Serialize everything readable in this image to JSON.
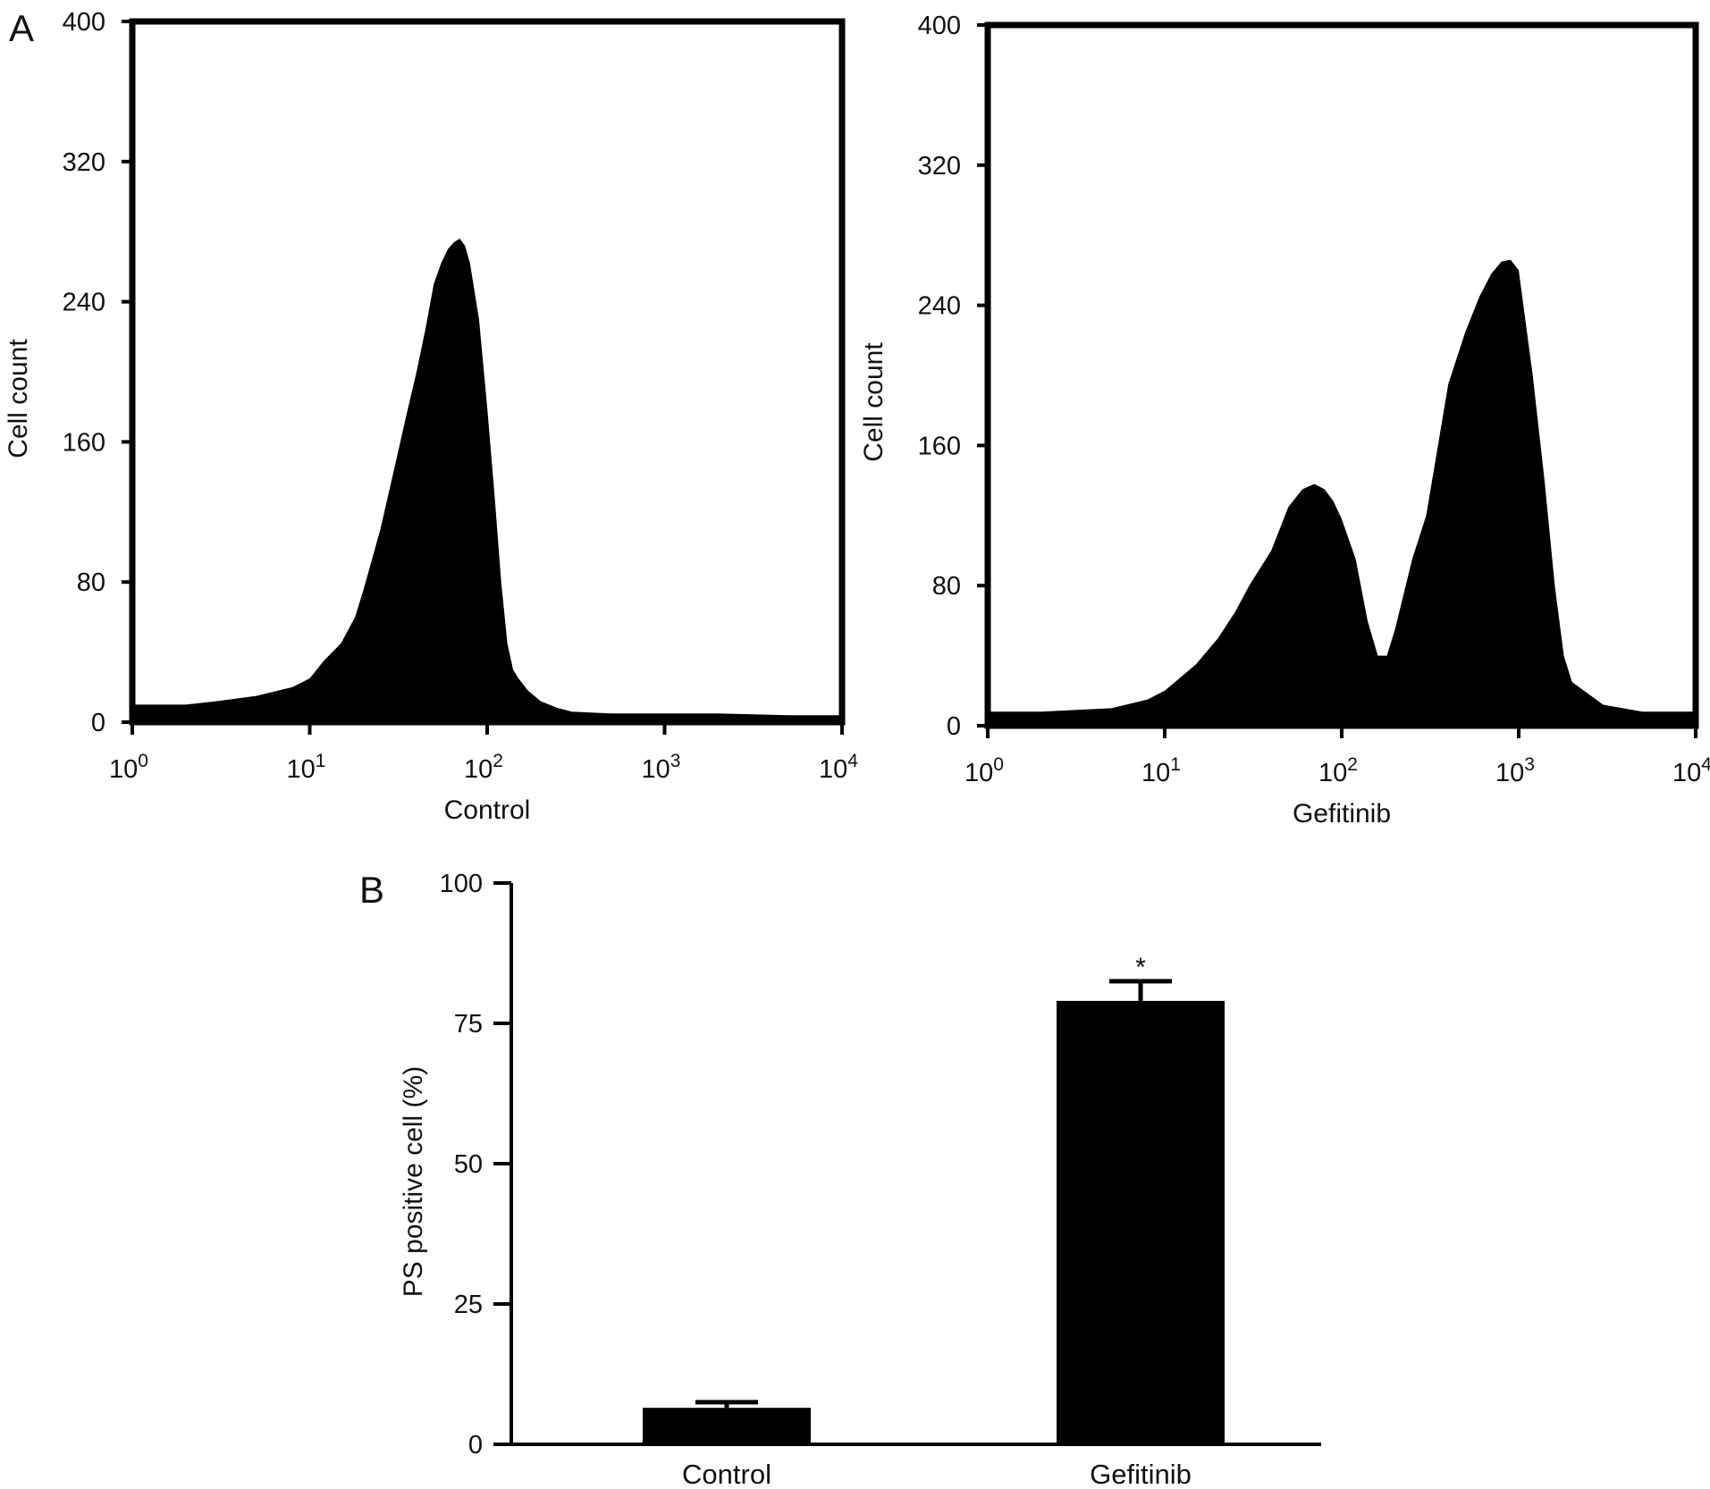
{
  "panels": {
    "a_label": "A",
    "b_label": "B"
  },
  "chart_data": [
    {
      "type": "area",
      "panel": "A",
      "xscale": "log",
      "xlim": [
        1,
        10000
      ],
      "ylim": [
        0,
        400
      ],
      "xlabel": "Control",
      "ylabel": "Cell count",
      "yticks": [
        "0",
        "80",
        "160",
        "240",
        "320",
        "400"
      ],
      "xticks": [
        {
          "base": "10",
          "exp": "0"
        },
        {
          "base": "10",
          "exp": "1"
        },
        {
          "base": "10",
          "exp": "2"
        },
        {
          "base": "10",
          "exp": "3"
        },
        {
          "base": "10",
          "exp": "4"
        }
      ],
      "fill_color": "#000000",
      "x": [
        1,
        1.5,
        2,
        3,
        5,
        8,
        10,
        12,
        15,
        18,
        20,
        25,
        30,
        35,
        40,
        45,
        50,
        55,
        60,
        65,
        70,
        75,
        80,
        90,
        100,
        110,
        120,
        130,
        140,
        150,
        170,
        200,
        250,
        300,
        500,
        1000,
        2000,
        5000,
        10000
      ],
      "y": [
        10,
        10,
        10,
        12,
        15,
        20,
        25,
        35,
        45,
        60,
        75,
        110,
        145,
        175,
        200,
        225,
        250,
        262,
        270,
        274,
        276,
        272,
        262,
        230,
        180,
        130,
        80,
        45,
        30,
        25,
        18,
        12,
        8,
        6,
        5,
        5,
        5,
        4,
        4
      ]
    },
    {
      "type": "area",
      "panel": "A",
      "xscale": "log",
      "xlim": [
        1,
        10000
      ],
      "ylim": [
        0,
        400
      ],
      "xlabel": "Gefitinib",
      "ylabel": "Cell count",
      "yticks": [
        "0",
        "80",
        "160",
        "240",
        "320",
        "400"
      ],
      "xticks": [
        {
          "base": "10",
          "exp": "0"
        },
        {
          "base": "10",
          "exp": "1"
        },
        {
          "base": "10",
          "exp": "2"
        },
        {
          "base": "10",
          "exp": "3"
        },
        {
          "base": "10",
          "exp": "4"
        }
      ],
      "fill_color": "#000000",
      "x": [
        1,
        2,
        5,
        8,
        10,
        15,
        20,
        25,
        30,
        40,
        50,
        60,
        70,
        80,
        90,
        100,
        120,
        140,
        160,
        180,
        200,
        250,
        300,
        350,
        400,
        500,
        600,
        700,
        800,
        900,
        1000,
        1200,
        1400,
        1600,
        1800,
        2000,
        3000,
        5000,
        10000
      ],
      "y": [
        8,
        8,
        10,
        15,
        20,
        35,
        50,
        65,
        80,
        100,
        125,
        135,
        138,
        135,
        128,
        118,
        95,
        60,
        40,
        40,
        55,
        95,
        120,
        160,
        195,
        225,
        245,
        258,
        265,
        266,
        260,
        200,
        140,
        80,
        40,
        25,
        12,
        8,
        8
      ]
    },
    {
      "type": "bar",
      "panel": "B",
      "categories": [
        "Control",
        "Gefitinib"
      ],
      "values": [
        6.5,
        79
      ],
      "errors": [
        1.0,
        3.5
      ],
      "ylim": [
        0,
        100
      ],
      "yticks": [
        "0",
        "25",
        "50",
        "75",
        "100"
      ],
      "ylabel": "PS positive cell (%)",
      "xlabel": "",
      "bar_color": "#000000",
      "annotations": [
        {
          "category": "Gefitinib",
          "text": "*"
        }
      ]
    }
  ]
}
